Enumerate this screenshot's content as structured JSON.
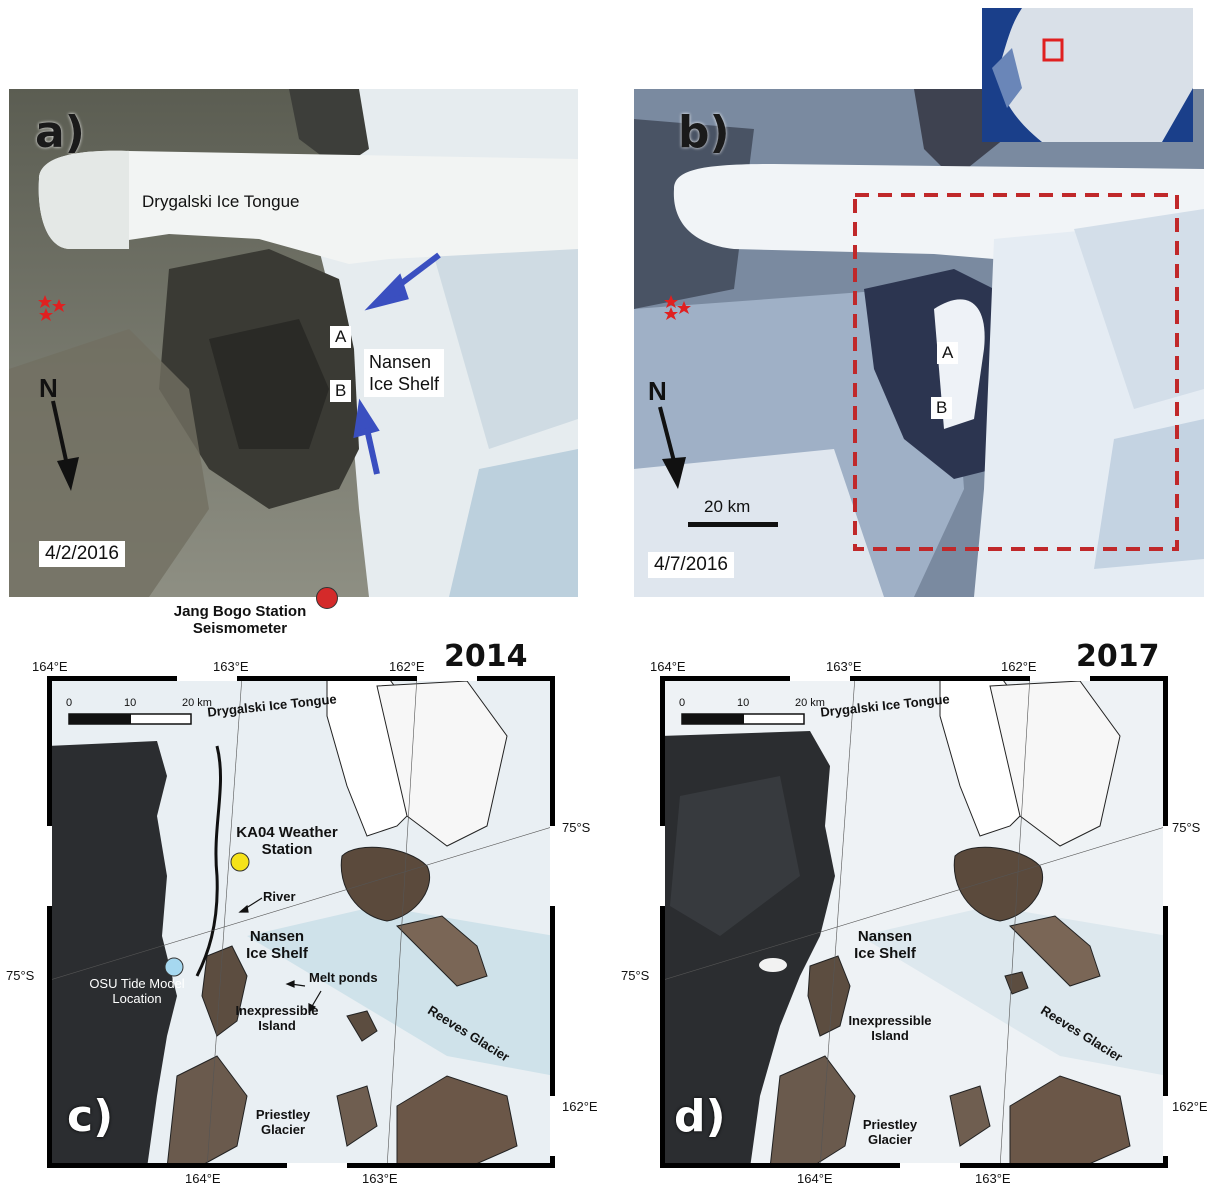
{
  "panels": {
    "a": {
      "letter": "a)",
      "date": "4/2/2016",
      "drygalski": "Drygalski Ice Tongue",
      "label_A": "A",
      "label_B": "B",
      "nansen_line1": "Nansen",
      "nansen_line2": "Ice Shelf",
      "north": "N",
      "station_line1": "Jang Bogo Station",
      "station_line2": "Seismometer"
    },
    "b": {
      "letter": "b)",
      "date": "4/7/2016",
      "label_A": "A",
      "label_B": "B",
      "north": "N",
      "scale": "20 km"
    },
    "c": {
      "letter": "c)",
      "year": "2014",
      "lon_top": [
        "164°E",
        "163°E",
        "162°E"
      ],
      "lon_bottom": [
        "164°E",
        "163°E"
      ],
      "lat_left": "75°S",
      "lat_right_top": "75°S",
      "lat_right_bottom": "162°E",
      "scale_ticks": [
        "0",
        "10",
        "20 km"
      ],
      "drygalski": "Drygalski Ice Tongue",
      "ka04_line1": "KA04 Weather",
      "ka04_line2": "Station",
      "river": "River",
      "nansen_line1": "Nansen",
      "nansen_line2": "Ice Shelf",
      "melt_ponds": "Melt ponds",
      "osu_line1": "OSU Tide Model",
      "osu_line2": "Location",
      "inexpressible_line1": "Inexpressible",
      "inexpressible_line2": "Island",
      "reeves": "Reeves Glacier",
      "priestley_line1": "Priestley",
      "priestley_line2": "Glacier"
    },
    "d": {
      "letter": "d)",
      "year": "2017",
      "lon_top": [
        "164°E",
        "163°E",
        "162°E"
      ],
      "lon_bottom": [
        "164°E",
        "163°E"
      ],
      "lat_left": "75°S",
      "lat_right_top": "75°S",
      "lat_right_bottom": "162°E",
      "scale_ticks": [
        "0",
        "10",
        "20 km"
      ],
      "drygalski": "Drygalski Ice Tongue",
      "nansen_line1": "Nansen",
      "nansen_line2": "Ice Shelf",
      "inexpressible_line1": "Inexpressible",
      "inexpressible_line2": "Island",
      "reeves": "Reeves Glacier",
      "priestley_line1": "Priestley",
      "priestley_line2": "Glacier"
    }
  },
  "colors": {
    "star": "#e02020",
    "arrow_blue": "#3a4fc0",
    "station_red": "#d42a2a",
    "ka04_yellow": "#f5e21a",
    "osu_blue": "#a6d8f0",
    "dashed_box": "#c0282a",
    "ocean_dark": "#2b2d30",
    "ice_light": "#eef3f6"
  }
}
